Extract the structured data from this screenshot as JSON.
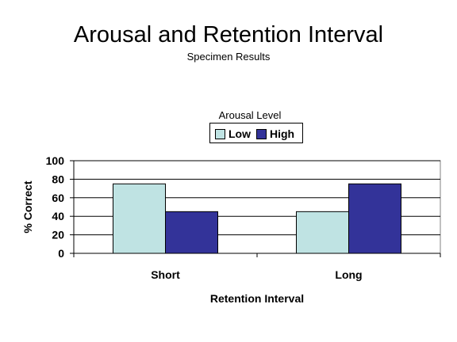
{
  "slide": {
    "title": "Arousal and Retention Interval",
    "subtitle": "Specimen Results"
  },
  "colors": {
    "low": "#bfe3e3",
    "high": "#333399",
    "grid": "#000000",
    "plot_background": "#ffffff"
  },
  "chart_data": {
    "type": "bar",
    "title": "Arousal and Retention Interval",
    "subtitle": "Specimen Results",
    "categories": [
      "Short",
      "Long"
    ],
    "series": [
      {
        "name": "Low",
        "values": [
          75,
          45
        ]
      },
      {
        "name": "High",
        "values": [
          45,
          75
        ]
      }
    ],
    "xlabel": "Retention Interval",
    "ylabel": "% Correct",
    "ylim": [
      0,
      100
    ],
    "yticks": [
      "0",
      "20",
      "40",
      "60",
      "80",
      "100"
    ],
    "grid": true,
    "legend": {
      "title": "Arousal Level",
      "placement": "top-center"
    }
  }
}
